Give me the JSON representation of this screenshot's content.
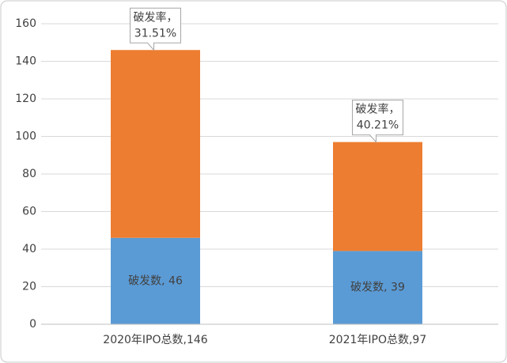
{
  "chart_data": {
    "type": "stacked-bar",
    "categories": [
      "2020年IPO总数,146",
      "2021年IPO总数,97"
    ],
    "series": [
      {
        "color": "#5b9bd5",
        "values": [
          46,
          39
        ],
        "value_labels": [
          "破发数, 46",
          "破发数, 39"
        ]
      },
      {
        "color": "#ed7d31",
        "values": [
          100,
          58
        ]
      }
    ],
    "annotations": [
      [
        "破发率，",
        "31.51%"
      ],
      [
        "破发率，",
        "40.21%"
      ]
    ],
    "ylim": [
      0,
      160
    ],
    "yticks": [
      0,
      20,
      40,
      60,
      80,
      100,
      120,
      140,
      160
    ],
    "grid": true
  }
}
